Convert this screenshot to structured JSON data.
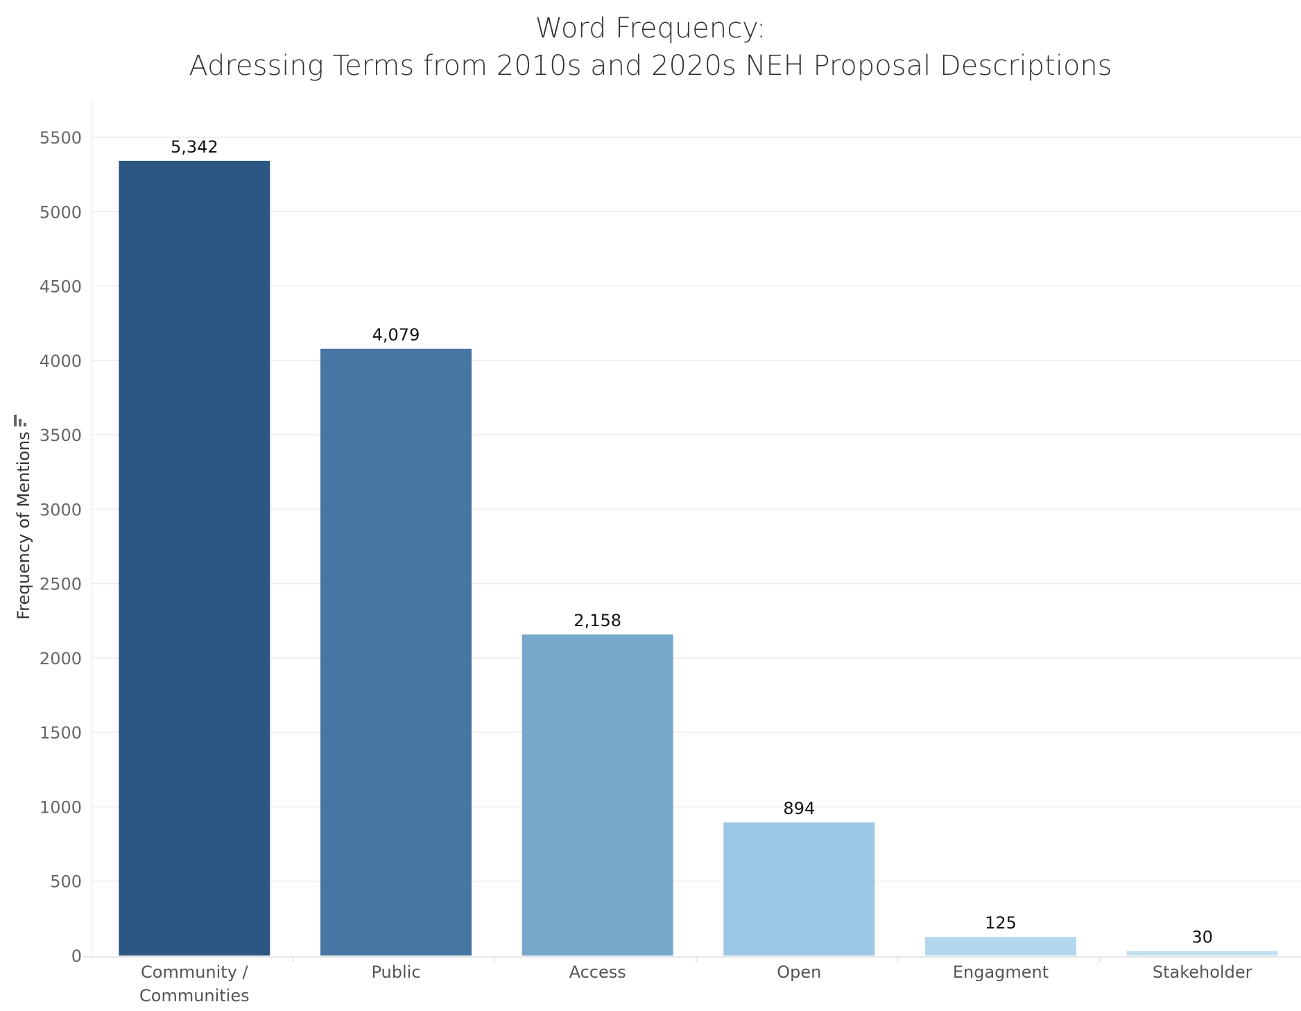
{
  "chart_data": {
    "type": "bar",
    "title_line1": "Word Frequency:",
    "title_line2": "Adressing Terms from 2010s and 2020s NEH Proposal Descriptions",
    "ylabel": "Frequency of Mentions",
    "xlabel": "",
    "categories": [
      [
        "Community /",
        "Communities"
      ],
      [
        "Public"
      ],
      [
        "Access"
      ],
      [
        "Open"
      ],
      [
        "Engagment"
      ],
      [
        "Stakeholder"
      ]
    ],
    "values": [
      5342,
      4079,
      2158,
      894,
      125,
      30
    ],
    "value_labels": [
      "5,342",
      "4,079",
      "2,158",
      "894",
      "125",
      "30"
    ],
    "colors": [
      "#2c5782",
      "#4775a4",
      "#78a7cc",
      "#9bc6e4",
      "#b3d7ee",
      "#c2def1"
    ],
    "ylim": [
      0,
      5600
    ],
    "yticks": [
      0,
      500,
      1000,
      1500,
      2000,
      2500,
      3000,
      3500,
      4000,
      4500,
      5000,
      5500
    ],
    "grid": true,
    "legend": "none"
  }
}
